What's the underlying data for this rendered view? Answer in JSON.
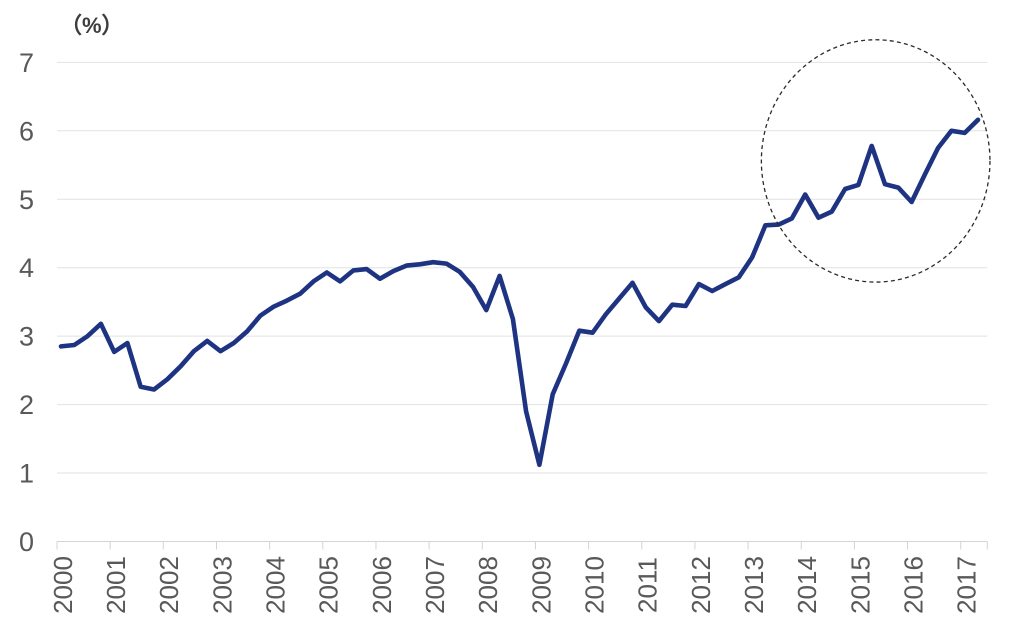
{
  "chart_data": {
    "type": "line",
    "title": "",
    "unit_label": "（%）",
    "xlabel": "",
    "ylabel": "",
    "ylim": [
      0,
      7
    ],
    "y_ticks": [
      0,
      1,
      2,
      3,
      4,
      5,
      6,
      7
    ],
    "x_tick_labels": [
      "2000",
      "2001",
      "2002",
      "2003",
      "2004",
      "2005",
      "2006",
      "2007",
      "2008",
      "2009",
      "2010",
      "2011",
      "2012",
      "2013",
      "2014",
      "2015",
      "2016",
      "2017"
    ],
    "grid": "horizontal-on",
    "legend": "none",
    "frequency": "quarterly",
    "period_start": "2000-Q1",
    "period_end": "2017-Q2",
    "series": [
      {
        "name": "rate-percent",
        "color": "#1e3482",
        "values": [
          2.85,
          2.87,
          3.0,
          3.18,
          2.77,
          2.9,
          2.26,
          2.22,
          2.37,
          2.56,
          2.78,
          2.93,
          2.78,
          2.9,
          3.07,
          3.3,
          3.43,
          3.52,
          3.62,
          3.8,
          3.93,
          3.8,
          3.96,
          3.98,
          3.84,
          3.95,
          4.03,
          4.05,
          4.08,
          4.06,
          3.94,
          3.72,
          3.38,
          3.88,
          3.25,
          1.9,
          1.12,
          2.15,
          2.6,
          3.08,
          3.05,
          3.32,
          3.55,
          3.78,
          3.42,
          3.22,
          3.46,
          3.44,
          3.76,
          3.66,
          3.76,
          3.86,
          4.15,
          4.62,
          4.63,
          4.72,
          5.07,
          4.73,
          4.82,
          5.15,
          5.21,
          5.78,
          5.22,
          5.17,
          4.96,
          5.36,
          5.75,
          6.0,
          5.97,
          6.16
        ]
      }
    ],
    "annotation": {
      "type": "dashed-circle-highlight",
      "highlights": "2014-2017 rising segment",
      "center_period_index": 61.3,
      "center_value": 5.56,
      "radius_periods": 8.6,
      "radius_value": 1.77,
      "color": "#2b2b2b"
    },
    "colors": {
      "line": "#1e3482",
      "gridline": "#e2e2e2",
      "axis": "#d4d4d4",
      "tick_label": "#595959",
      "unit_label": "#3d3d3d",
      "background": "#ffffff"
    }
  }
}
